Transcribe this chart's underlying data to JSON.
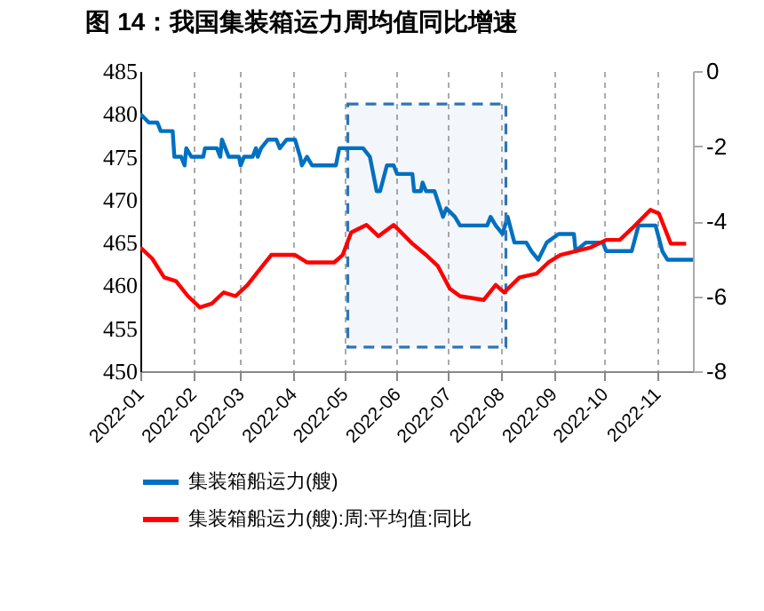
{
  "chart_data": {
    "type": "line",
    "title": "图 14：我国集装箱运力周均值同比增速",
    "xlim": [
      "2022-01-01",
      "2022-11-22"
    ],
    "xticks": [
      "2022-01",
      "2022-02",
      "2022-03",
      "2022-04",
      "2022-05",
      "2022-06",
      "2022-07",
      "2022-08",
      "2022-09",
      "2022-10",
      "2022-11"
    ],
    "ylim": [
      450,
      485
    ],
    "yticks": [
      450,
      455,
      460,
      465,
      470,
      475,
      480,
      485
    ],
    "y2lim": [
      -8,
      0
    ],
    "y2ticks": [
      -8,
      -6,
      -4,
      -2,
      0
    ],
    "grid": "x",
    "legend": "bottom",
    "bands": [
      {
        "axis": "x",
        "from": "2022-05-03",
        "to": "2022-08-04",
        "color": "#2e75b6"
      }
    ],
    "series": [
      {
        "name": "集装箱船运力(艘)",
        "color": "#0070c0",
        "x": [
          "2022-01-01",
          "2022-01-06",
          "2022-01-11",
          "2022-01-13",
          "2022-01-20",
          "2022-01-21",
          "2022-01-25",
          "2022-01-27",
          "2022-01-28",
          "2022-01-31",
          "2022-02-07",
          "2022-02-08",
          "2022-02-15",
          "2022-02-17",
          "2022-02-18",
          "2022-02-22",
          "2022-02-28",
          "2022-03-01",
          "2022-03-03",
          "2022-03-08",
          "2022-03-10",
          "2022-03-11",
          "2022-03-13",
          "2022-03-17",
          "2022-03-22",
          "2022-03-24",
          "2022-03-28",
          "2022-04-02",
          "2022-04-05",
          "2022-04-06",
          "2022-04-09",
          "2022-04-12",
          "2022-04-26",
          "2022-04-28",
          "2022-05-03",
          "2022-05-07",
          "2022-05-12",
          "2022-05-16",
          "2022-05-20",
          "2022-05-22",
          "2022-05-26",
          "2022-05-30",
          "2022-06-01",
          "2022-06-10",
          "2022-06-11",
          "2022-06-15",
          "2022-06-16",
          "2022-06-18",
          "2022-06-23",
          "2022-06-28",
          "2022-06-30",
          "2022-07-05",
          "2022-07-08",
          "2022-07-14",
          "2022-07-24",
          "2022-07-26",
          "2022-07-29",
          "2022-08-02",
          "2022-08-05",
          "2022-08-09",
          "2022-08-16",
          "2022-08-19",
          "2022-08-23",
          "2022-08-28",
          "2022-09-04",
          "2022-09-13",
          "2022-09-14",
          "2022-09-20",
          "2022-09-30",
          "2022-10-02",
          "2022-10-17",
          "2022-10-21",
          "2022-10-31",
          "2022-11-04",
          "2022-11-07",
          "2022-11-22"
        ],
        "values": [
          480,
          479,
          479,
          478,
          478,
          475,
          475,
          474,
          476,
          475,
          475,
          476,
          476,
          475,
          477,
          475,
          475,
          474,
          475,
          475,
          476,
          475,
          476,
          477,
          477,
          476,
          477,
          477,
          475,
          474,
          475,
          474,
          474,
          476,
          476,
          476,
          476,
          475,
          471,
          471,
          474,
          474,
          473,
          473,
          471,
          471,
          472,
          471,
          471,
          468,
          469,
          468,
          467,
          467,
          467,
          468,
          467,
          466,
          468,
          465,
          465,
          464,
          463,
          465,
          466,
          466,
          464,
          465,
          465,
          464,
          464,
          467,
          467,
          464,
          463,
          463
        ]
      },
      {
        "name": "集装箱船运力(艘):周:平均值:同比",
        "color": "#ff0000",
        "axis": "y2",
        "x": [
          "2022-01-01",
          "2022-01-08",
          "2022-01-15",
          "2022-01-22",
          "2022-01-29",
          "2022-02-05",
          "2022-02-12",
          "2022-02-19",
          "2022-02-26",
          "2022-03-05",
          "2022-03-12",
          "2022-03-19",
          "2022-03-26",
          "2022-04-02",
          "2022-04-09",
          "2022-04-16",
          "2022-04-25",
          "2022-04-30",
          "2022-05-05",
          "2022-05-14",
          "2022-05-21",
          "2022-05-30",
          "2022-06-10",
          "2022-06-18",
          "2022-06-25",
          "2022-07-02",
          "2022-07-08",
          "2022-07-22",
          "2022-07-29",
          "2022-08-03",
          "2022-08-12",
          "2022-08-22",
          "2022-08-29",
          "2022-09-05",
          "2022-09-14",
          "2022-09-23",
          "2022-10-02",
          "2022-10-10",
          "2022-10-17",
          "2022-10-28",
          "2022-11-02",
          "2022-11-09",
          "2022-11-18"
        ],
        "values": [
          -4.7,
          -5.0,
          -5.5,
          -5.6,
          -6.0,
          -6.3,
          -6.2,
          -5.9,
          -6.0,
          -5.7,
          -5.3,
          -4.9,
          -4.9,
          -4.9,
          -5.1,
          -5.1,
          -5.1,
          -4.9,
          -4.3,
          -4.1,
          -4.4,
          -4.1,
          -4.6,
          -4.9,
          -5.2,
          -5.8,
          -6.0,
          -6.1,
          -5.7,
          -5.9,
          -5.5,
          -5.4,
          -5.1,
          -4.9,
          -4.8,
          -4.7,
          -4.5,
          -4.5,
          -4.2,
          -3.7,
          -3.8,
          -4.6,
          -4.6
        ]
      }
    ]
  }
}
